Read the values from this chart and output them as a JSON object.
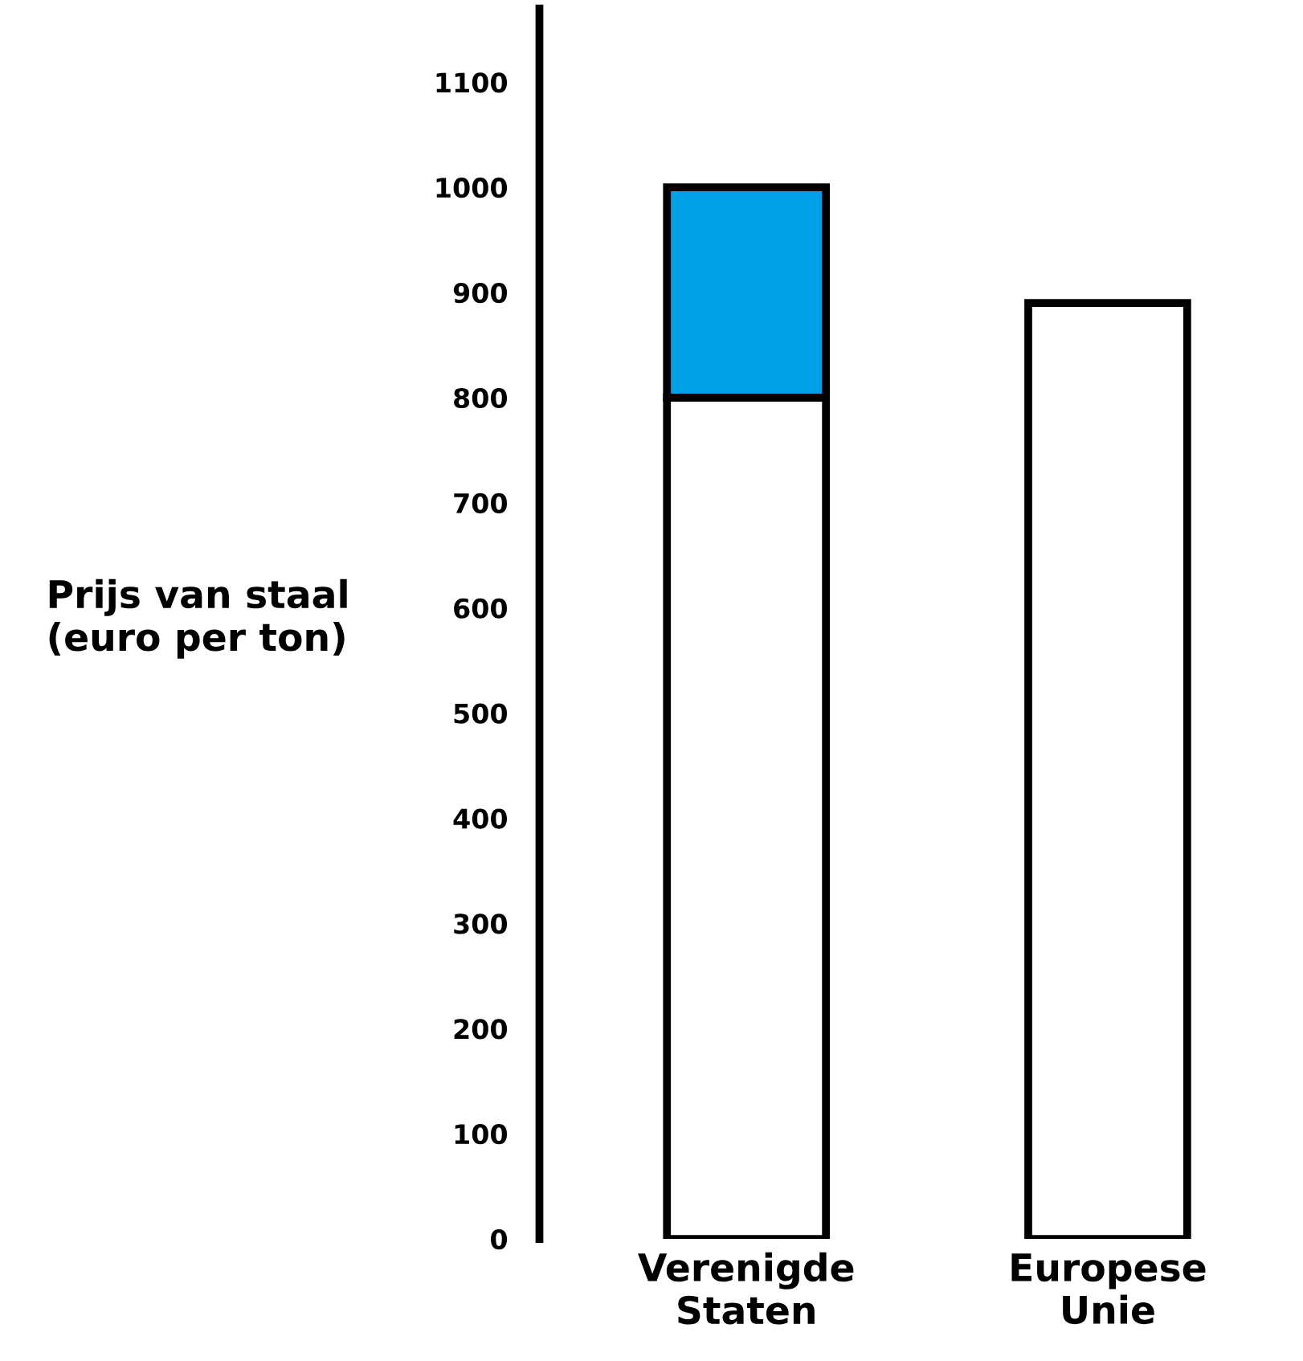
{
  "chart_data": {
    "type": "bar",
    "stacked": true,
    "ylabel": "Prijs van staal\n(euro per ton)",
    "categories": [
      "Verenigde\nStaten",
      "Europese\nUnie"
    ],
    "series": [
      {
        "color": "#ffffff",
        "values": [
          800,
          890
        ]
      },
      {
        "color": "#00a0e6",
        "values": [
          200,
          null
        ]
      }
    ],
    "ylim": [
      0,
      1170
    ],
    "yticks": [
      0,
      100,
      200,
      300,
      400,
      500,
      600,
      700,
      800,
      900,
      1000,
      1100
    ],
    "grid": false,
    "legend": false
  }
}
